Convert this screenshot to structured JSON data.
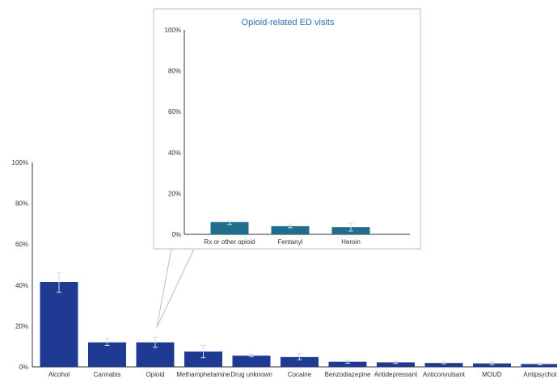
{
  "colors": {
    "main_bar": "#1f3a93",
    "inset_bar": "#1f6e8c",
    "axis": "#333333",
    "inset_border": "#bdbdbd",
    "inset_title": "#2a6fb5"
  },
  "chart_data": [
    {
      "type": "bar",
      "title": "",
      "xlabel": "",
      "ylabel": "",
      "ylim": [
        0,
        100
      ],
      "yticks": [
        0,
        20,
        40,
        60,
        80,
        100
      ],
      "ytick_labels": [
        "0%",
        "20%",
        "40%",
        "60%",
        "80%",
        "100%"
      ],
      "grid": false,
      "categories": [
        "Alcohol",
        "Cannabis",
        "Opioid",
        "Methamphetamine",
        "Drug unknown",
        "Cocaine",
        "Benzodiazepine",
        "Antidepressant",
        "Anticonvulsant",
        "MOUD",
        "Antipsychot"
      ],
      "values": [
        41.5,
        12,
        12,
        7.5,
        5.5,
        4.8,
        2.5,
        2.2,
        1.9,
        1.7,
        1.4
      ],
      "error_low": [
        36.5,
        10.5,
        9.5,
        4.5,
        5,
        3.5,
        1.8,
        1.7,
        1.5,
        1.0,
        1.0
      ],
      "error_high": [
        46,
        14,
        14.5,
        10.5,
        6.3,
        6.5,
        3.3,
        2.8,
        2.3,
        2.6,
        1.9
      ]
    },
    {
      "type": "bar",
      "title": "Opioid-related ED visits",
      "xlabel": "",
      "ylabel": "",
      "ylim": [
        0,
        100
      ],
      "yticks": [
        0,
        20,
        40,
        60,
        80,
        100
      ],
      "ytick_labels": [
        "0%",
        "20%",
        "40%",
        "60%",
        "80%",
        "100%"
      ],
      "grid": false,
      "categories": [
        "Rx or other opioid",
        "Fentanyl",
        "Heroin"
      ],
      "values": [
        6,
        4,
        3.5
      ],
      "error_low": [
        4.8,
        3.2,
        1.6
      ],
      "error_high": [
        6.8,
        4.8,
        5.5
      ]
    }
  ]
}
